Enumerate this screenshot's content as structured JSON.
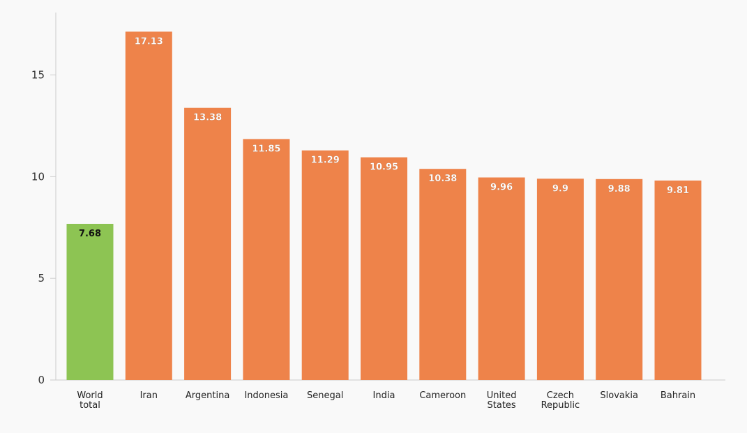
{
  "chart_data": {
    "type": "bar",
    "title": "",
    "xlabel": "",
    "ylabel": "",
    "ylim": [
      0,
      18
    ],
    "yticks": [
      0,
      5,
      10,
      15
    ],
    "grid": false,
    "legend": "none",
    "categories": [
      [
        "World",
        "total"
      ],
      [
        "Iran"
      ],
      [
        "Argentina"
      ],
      [
        "Indonesia"
      ],
      [
        "Senegal"
      ],
      [
        "India"
      ],
      [
        "Cameroon"
      ],
      [
        "United",
        "States"
      ],
      [
        "Czech",
        "Republic"
      ],
      [
        "Slovakia"
      ],
      [
        "Bahrain"
      ]
    ],
    "values": [
      7.68,
      17.13,
      13.38,
      11.85,
      11.29,
      10.95,
      10.38,
      9.96,
      9.9,
      9.88,
      9.81
    ],
    "value_labels": [
      "7.68",
      "17.13",
      "13.38",
      "11.85",
      "11.29",
      "10.95",
      "10.38",
      "9.96",
      "9.9",
      "9.88",
      "9.81"
    ],
    "colors": {
      "highlight": "#8dc453",
      "bar": "#ee834a",
      "highlight_label": "#111111",
      "bar_label": "#ffffff",
      "axis": "#cccccc",
      "background": "#f9f9f9"
    },
    "highlight_index": 0
  }
}
